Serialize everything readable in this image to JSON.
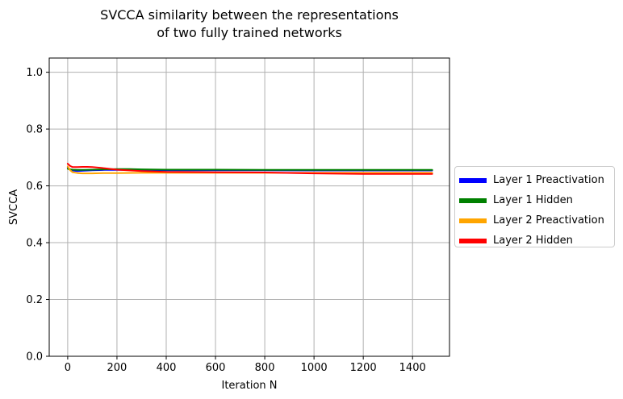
{
  "chart_data": {
    "type": "line",
    "title_line1": "SVCCA similarity between the representations",
    "title_line2": "of  two fully trained networks",
    "xlabel": "Iteration N",
    "ylabel": "SVCCA",
    "xlim": [
      -75,
      1550
    ],
    "ylim": [
      0.0,
      1.05
    ],
    "xticks": [
      0,
      200,
      400,
      600,
      800,
      1000,
      1200,
      1400
    ],
    "yticks": [
      0.0,
      0.2,
      0.4,
      0.6,
      0.8,
      1.0
    ],
    "ytick_labels": [
      "0.0",
      "0.2",
      "0.4",
      "0.6",
      "0.8",
      "1.0"
    ],
    "grid": true,
    "legend_position": "center-right-outside",
    "series": [
      {
        "name": "Layer 1 Preactivation",
        "color": "#0000ff",
        "x": [
          0,
          10,
          20,
          40,
          60,
          100,
          150,
          200,
          300,
          400,
          600,
          800,
          1000,
          1200,
          1480
        ],
        "y": [
          0.665,
          0.658,
          0.654,
          0.652,
          0.653,
          0.655,
          0.656,
          0.656,
          0.656,
          0.655,
          0.655,
          0.655,
          0.654,
          0.654,
          0.654
        ]
      },
      {
        "name": "Layer 1 Hidden",
        "color": "#008000",
        "x": [
          0,
          10,
          20,
          40,
          60,
          100,
          150,
          200,
          250,
          300,
          400,
          600,
          800,
          1000,
          1200,
          1480
        ],
        "y": [
          0.66,
          0.658,
          0.657,
          0.656,
          0.656,
          0.657,
          0.658,
          0.659,
          0.659,
          0.658,
          0.657,
          0.657,
          0.656,
          0.656,
          0.656,
          0.656
        ]
      },
      {
        "name": "Layer 2 Preactivation",
        "color": "#ffa500",
        "x": [
          0,
          10,
          20,
          40,
          60,
          100,
          150,
          200,
          300,
          400,
          600,
          800,
          1000,
          1200,
          1480
        ],
        "y": [
          0.668,
          0.655,
          0.648,
          0.645,
          0.644,
          0.644,
          0.645,
          0.645,
          0.646,
          0.646,
          0.646,
          0.646,
          0.646,
          0.646,
          0.646
        ]
      },
      {
        "name": "Layer 2 Hidden",
        "color": "#ff0000",
        "x": [
          0,
          10,
          20,
          40,
          60,
          80,
          100,
          150,
          200,
          300,
          400,
          600,
          800,
          1000,
          1200,
          1480
        ],
        "y": [
          0.678,
          0.67,
          0.666,
          0.666,
          0.667,
          0.667,
          0.666,
          0.662,
          0.657,
          0.652,
          0.649,
          0.648,
          0.647,
          0.644,
          0.642,
          0.642
        ]
      }
    ]
  }
}
